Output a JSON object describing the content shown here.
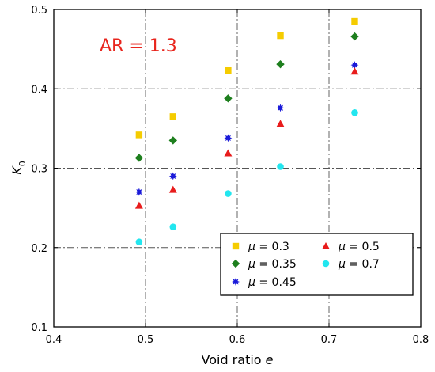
{
  "chart_data": {
    "type": "scatter",
    "annotation": "AR = 1.3",
    "annotation_color": "#e8251d",
    "ylabel": {
      "main": "K",
      "sub": "0"
    },
    "xlabel": {
      "main": "Void ratio ",
      "italic": "e"
    },
    "xlim": [
      0.4,
      0.8
    ],
    "ylim": [
      0.1,
      0.5
    ],
    "xticks": [
      "0.4",
      "0.5",
      "0.6",
      "0.7",
      "0.8"
    ],
    "yticks": [
      "0.1",
      "0.2",
      "0.3",
      "0.4",
      "0.5"
    ],
    "grid": true,
    "legend_placement": "lower-right",
    "x": [
      0.493,
      0.53,
      0.59,
      0.647,
      0.728
    ],
    "series": [
      {
        "name": "μ = 0.3",
        "symbol": "μ",
        "rest": " = 0.3",
        "marker": "square",
        "color": "#f5cc00",
        "values": [
          0.342,
          0.365,
          0.423,
          0.467,
          0.485
        ]
      },
      {
        "name": "μ = 0.35",
        "symbol": "μ",
        "rest": " = 0.35",
        "marker": "diamond",
        "color": "#1e7f1e",
        "values": [
          0.313,
          0.335,
          0.388,
          0.431,
          0.466
        ]
      },
      {
        "name": "μ = 0.45",
        "symbol": "μ",
        "rest": " = 0.45",
        "marker": "star",
        "color": "#1a1ad9",
        "values": [
          0.27,
          0.29,
          0.338,
          0.376,
          0.43
        ]
      },
      {
        "name": "μ = 0.5",
        "symbol": "μ",
        "rest": " = 0.5",
        "marker": "triangle",
        "color": "#e81c1c",
        "values": [
          0.253,
          0.273,
          0.319,
          0.356,
          0.422
        ]
      },
      {
        "name": "μ = 0.7",
        "symbol": "μ",
        "rest": " = 0.7",
        "marker": "circle",
        "color": "#22e6ef",
        "values": [
          0.207,
          0.226,
          0.268,
          0.302,
          0.37
        ]
      }
    ]
  }
}
